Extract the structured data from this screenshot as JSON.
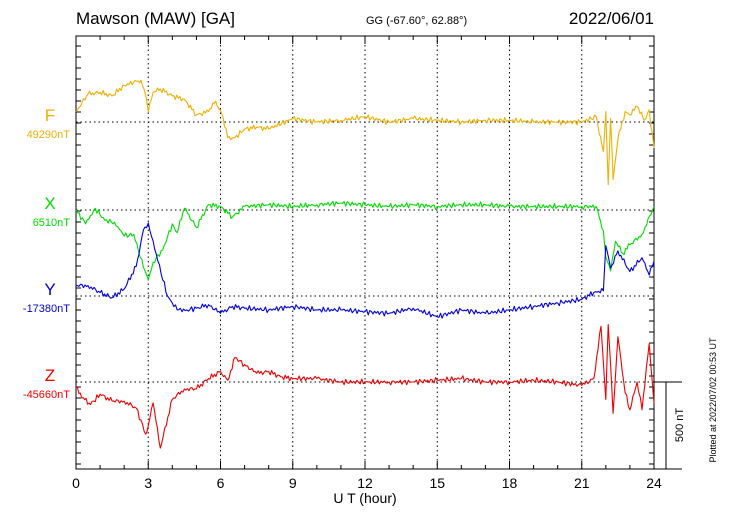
{
  "chart_data": {
    "type": "line",
    "title": "Mawson (MAW)  [GA]",
    "coords": "GG (-67.60°,  62.88°)",
    "date": "2022/06/01",
    "xlabel": "U T (hour)",
    "xlim": [
      0,
      24
    ],
    "xticks": [
      0,
      3,
      6,
      9,
      12,
      15,
      18,
      21,
      24
    ],
    "scale_bar_label": "500 nT",
    "scale_bar_nT": 500,
    "plotted_note": "Plotted at 2022/07/02 00:53 UT",
    "grid": true,
    "series": [
      {
        "name": "F",
        "baseline_label": "49290nT",
        "baseline_nT": 49290,
        "color": "#f0b000",
        "x": [
          0,
          0.5,
          1,
          1.5,
          2,
          2.4,
          2.7,
          2.9,
          3.0,
          3.2,
          3.5,
          4,
          4.5,
          5,
          5.5,
          5.8,
          6.1,
          6.3,
          6.6,
          7,
          7.5,
          8,
          9,
          10,
          11,
          12,
          13,
          14,
          15,
          16,
          17,
          18,
          19,
          20,
          21,
          21.6,
          21.9,
          22.0,
          22.1,
          22.2,
          22.3,
          22.5,
          22.8,
          23,
          23.3,
          23.6,
          23.8,
          24
        ],
        "values": [
          60,
          160,
          170,
          150,
          210,
          230,
          240,
          150,
          60,
          170,
          190,
          150,
          130,
          40,
          60,
          120,
          30,
          -90,
          -90,
          -40,
          -30,
          -40,
          20,
          0,
          10,
          30,
          0,
          20,
          10,
          0,
          10,
          10,
          0,
          0,
          0,
          30,
          -170,
          60,
          -360,
          20,
          -330,
          -100,
          60,
          40,
          90,
          10,
          70,
          -150
        ]
      },
      {
        "name": "X",
        "baseline_label": "6510nT",
        "baseline_nT": 6510,
        "color": "#00dd00",
        "x": [
          0,
          0.4,
          0.8,
          1.2,
          1.6,
          2,
          2.4,
          2.8,
          3.0,
          3.2,
          3.6,
          4,
          4.2,
          4.5,
          5,
          5.5,
          6,
          6.5,
          7,
          8,
          9,
          10,
          11,
          12,
          13,
          14,
          15,
          16,
          17,
          18,
          19,
          20,
          21,
          21.6,
          21.9,
          22.0,
          22.2,
          22.4,
          22.7,
          23,
          23.5,
          24
        ],
        "values": [
          0,
          -80,
          10,
          -60,
          -70,
          -150,
          -140,
          -330,
          -400,
          -300,
          -230,
          -80,
          -130,
          10,
          -100,
          30,
          20,
          -40,
          20,
          30,
          20,
          30,
          40,
          30,
          20,
          30,
          20,
          30,
          30,
          20,
          20,
          20,
          20,
          20,
          -120,
          -270,
          -350,
          -180,
          -250,
          -200,
          -140,
          20
        ]
      },
      {
        "name": "Y",
        "baseline_label": "-17380nT",
        "baseline_nT": -17380,
        "color": "#0000dd",
        "x": [
          0,
          0.5,
          1,
          1.5,
          2,
          2.5,
          2.8,
          3.0,
          3.4,
          3.8,
          4.2,
          4.6,
          5,
          5.5,
          6,
          6.5,
          7,
          8,
          9,
          10,
          11,
          12,
          13,
          14,
          15,
          16,
          17,
          18,
          19,
          20,
          21,
          21.5,
          21.9,
          22.0,
          22.2,
          22.5,
          23,
          23.5,
          23.8,
          24
        ],
        "values": [
          60,
          60,
          20,
          -10,
          40,
          170,
          380,
          420,
          200,
          0,
          -80,
          -80,
          -70,
          -50,
          -100,
          -60,
          -70,
          -80,
          -60,
          -80,
          -80,
          -90,
          -100,
          -70,
          -120,
          -80,
          -100,
          -80,
          -60,
          -40,
          -20,
          20,
          30,
          290,
          160,
          260,
          140,
          220,
          120,
          200
        ]
      },
      {
        "name": "Z",
        "baseline_label": "-45660nT",
        "baseline_nT": -45660,
        "color": "#ee0000",
        "x": [
          0,
          0.3,
          0.6,
          1,
          1.5,
          2,
          2.5,
          2.9,
          3.0,
          3.2,
          3.5,
          4,
          4.5,
          5,
          5.5,
          6,
          6.3,
          6.6,
          7,
          7.5,
          8,
          8.5,
          9,
          10,
          11,
          12,
          13,
          14,
          15,
          16,
          17,
          18,
          19,
          20,
          21,
          21.5,
          21.8,
          22.0,
          22.1,
          22.2,
          22.3,
          22.5,
          22.8,
          23,
          23.3,
          23.5,
          23.8,
          24
        ],
        "values": [
          -30,
          -90,
          -130,
          -70,
          -110,
          -110,
          -150,
          -300,
          -250,
          -120,
          -380,
          -100,
          -40,
          -40,
          20,
          60,
          10,
          140,
          100,
          50,
          60,
          30,
          20,
          20,
          0,
          0,
          0,
          0,
          10,
          20,
          0,
          0,
          10,
          0,
          -20,
          20,
          320,
          -100,
          330,
          100,
          -180,
          260,
          -60,
          -160,
          0,
          -160,
          220,
          -120
        ]
      }
    ]
  }
}
